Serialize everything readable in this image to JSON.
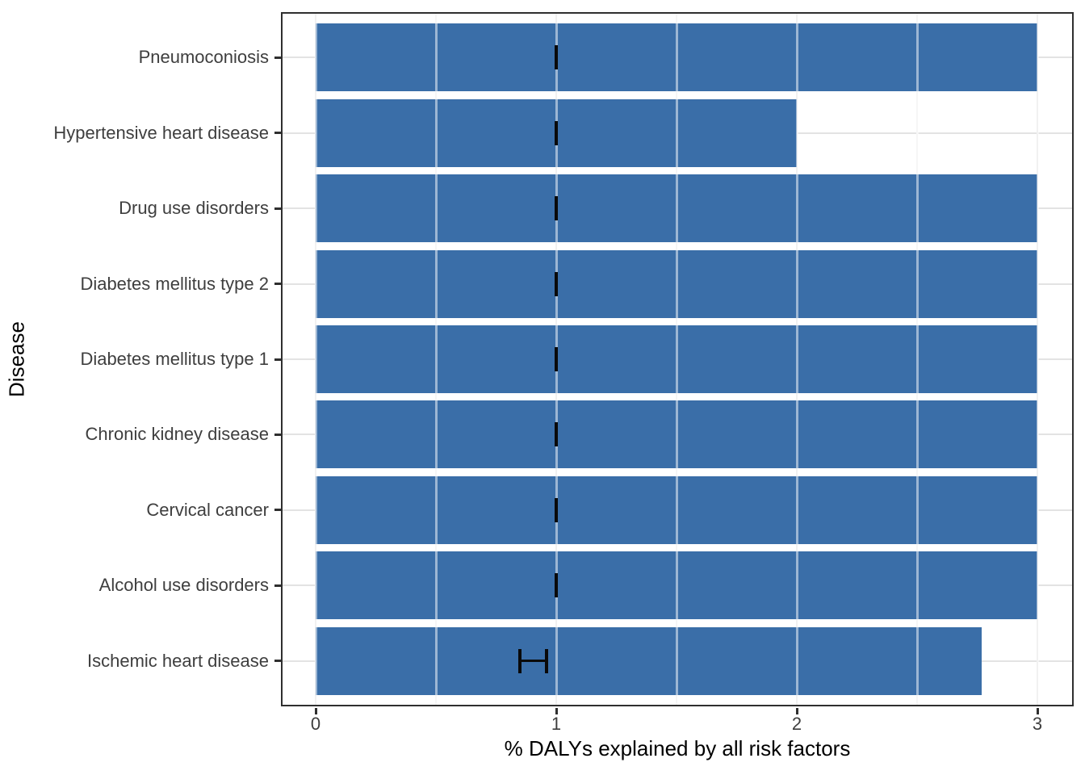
{
  "chart_data": {
    "type": "bar",
    "orientation": "horizontal",
    "xlabel": "% DALYs explained by all risk factors",
    "ylabel": "Disease",
    "xlim": [
      0,
      3
    ],
    "x_major_ticks": [
      0,
      1,
      2,
      3
    ],
    "x_tick_labels": [
      "0",
      "1",
      "2",
      "3"
    ],
    "x_minor_gridlines": [
      0.5,
      1.5,
      2.5
    ],
    "grid": true,
    "legend": false,
    "categories": [
      "Pneumoconiosis",
      "Hypertensive heart disease",
      "Drug use disorders",
      "Diabetes mellitus type 2",
      "Diabetes mellitus type 1",
      "Chronic kidney disease",
      "Cervical cancer",
      "Alcohol use disorders",
      "Ischemic heart disease"
    ],
    "values": [
      3.0,
      2.0,
      3.0,
      3.0,
      3.0,
      3.0,
      3.0,
      3.0,
      2.77
    ],
    "errorbars": [
      {
        "low": 1.0,
        "high": 1.0
      },
      {
        "low": 1.0,
        "high": 1.0
      },
      {
        "low": 1.0,
        "high": 1.0
      },
      {
        "low": 1.0,
        "high": 1.0
      },
      {
        "low": 1.0,
        "high": 1.0
      },
      {
        "low": 1.0,
        "high": 1.0
      },
      {
        "low": 1.0,
        "high": 1.0
      },
      {
        "low": 1.0,
        "high": 1.0
      },
      {
        "low": 0.85,
        "high": 0.96
      }
    ],
    "colors": {
      "bar": "#3a6ea8",
      "errorbar": "#0a0a0a",
      "panel_border": "#2f2f2f",
      "grid_major": "#e3e3e3",
      "grid_minor": "#ededed",
      "tick_text": "#3e3e3e",
      "title_text": "#000000",
      "background": "#ffffff"
    }
  }
}
